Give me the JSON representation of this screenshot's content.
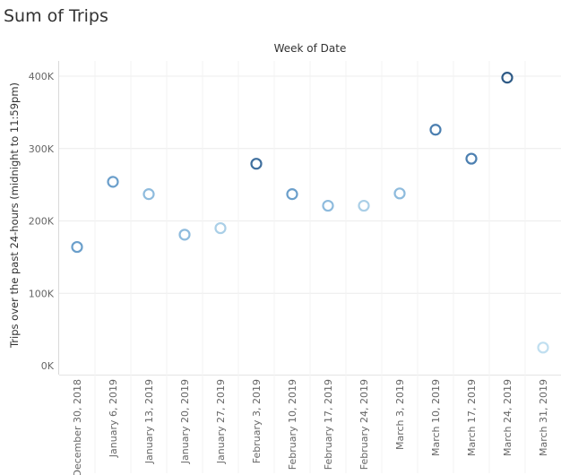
{
  "sheet": {
    "title": "Sum of Trips"
  },
  "chart_data": {
    "type": "scatter",
    "title": "Sum of Trips",
    "column_header": "Week of Date",
    "xlabel": "",
    "ylabel": "Trips over the past 24-hours (midnight to 11:59pm)",
    "ylim": [
      0,
      420000
    ],
    "y_ticks": [
      0,
      100000,
      200000,
      300000,
      400000
    ],
    "y_tick_labels": [
      "0K",
      "100K",
      "200K",
      "300K",
      "400K"
    ],
    "grid": true,
    "marker": "open-circle",
    "color_encoding": "sequential blue by value",
    "categories": [
      "December 30, 2018",
      "January 6, 2019",
      "January 13, 2019",
      "January 20, 2019",
      "January 27, 2019",
      "February 3, 2019",
      "February 10, 2019",
      "February 17, 2019",
      "February 24, 2019",
      "March 3, 2019",
      "March 10, 2019",
      "March 17, 2019",
      "March 24, 2019",
      "March 31, 2019"
    ],
    "values": [
      164000,
      254000,
      237000,
      181000,
      190000,
      279000,
      237000,
      221000,
      221000,
      238000,
      326000,
      286000,
      398000,
      25000
    ],
    "colors": [
      "#6b9fcb",
      "#6b9fcb",
      "#8ebbdd",
      "#8ebbdd",
      "#aacfe7",
      "#3f6f9e",
      "#6b9fcb",
      "#8ebbdd",
      "#aacfe7",
      "#8ebbdd",
      "#4b7fb0",
      "#4b7fb0",
      "#2e5a86",
      "#c0dff0"
    ]
  }
}
